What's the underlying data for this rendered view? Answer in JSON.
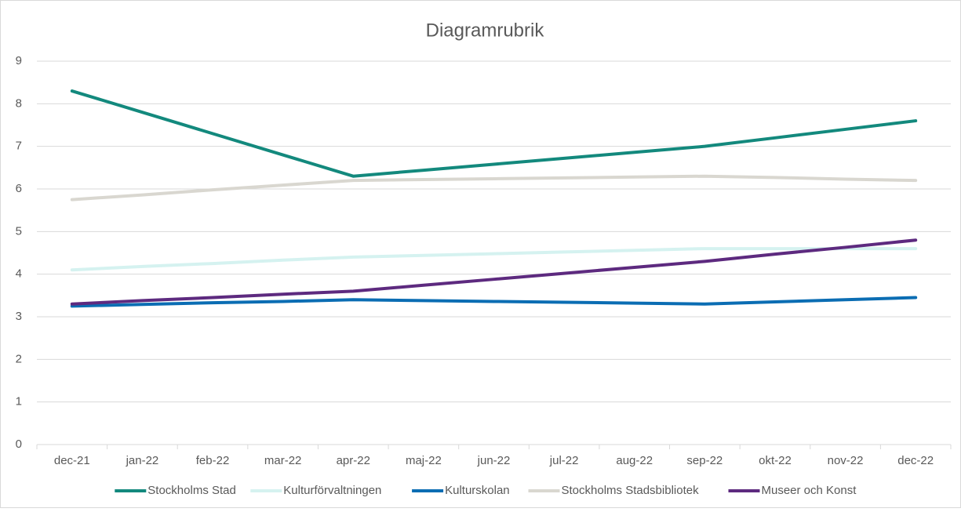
{
  "chart_data": {
    "type": "line",
    "title": "Diagramrubrik",
    "categories": [
      "dec-21",
      "jan-22",
      "feb-22",
      "mar-22",
      "apr-22",
      "maj-22",
      "jun-22",
      "jul-22",
      "aug-22",
      "sep-22",
      "okt-22",
      "nov-22",
      "dec-22"
    ],
    "series": [
      {
        "name": "Stockholms Stad",
        "color": "#13897d",
        "values": [
          8.3,
          7.8,
          7.3,
          6.8,
          6.3,
          6.44,
          6.58,
          6.72,
          6.86,
          7.0,
          7.2,
          7.4,
          7.6
        ]
      },
      {
        "name": "Kulturförvaltningen",
        "color": "#d5f2f0",
        "values": [
          4.1,
          4.18,
          4.25,
          4.33,
          4.4,
          4.44,
          4.48,
          4.52,
          4.56,
          4.6,
          4.6,
          4.6,
          4.6
        ]
      },
      {
        "name": "Kulturskolan",
        "color": "#0b6db3",
        "values": [
          3.25,
          3.29,
          3.33,
          3.36,
          3.4,
          3.38,
          3.36,
          3.34,
          3.32,
          3.3,
          3.35,
          3.4,
          3.45
        ]
      },
      {
        "name": "Stockholms Stadsbibliotek",
        "color": "#d9d7d0",
        "values": [
          5.75,
          5.86,
          5.98,
          6.09,
          6.2,
          6.22,
          6.24,
          6.26,
          6.28,
          6.3,
          6.27,
          6.23,
          6.2
        ]
      },
      {
        "name": "Museer och Konst",
        "color": "#5d2a7f",
        "values": [
          3.3,
          3.38,
          3.45,
          3.53,
          3.6,
          3.74,
          3.88,
          4.02,
          4.16,
          4.3,
          4.47,
          4.63,
          4.8
        ]
      }
    ],
    "ylim": [
      0,
      9
    ],
    "yticks": [
      0,
      1,
      2,
      3,
      4,
      5,
      6,
      7,
      8,
      9
    ],
    "grid": true,
    "legend": "bottom"
  }
}
